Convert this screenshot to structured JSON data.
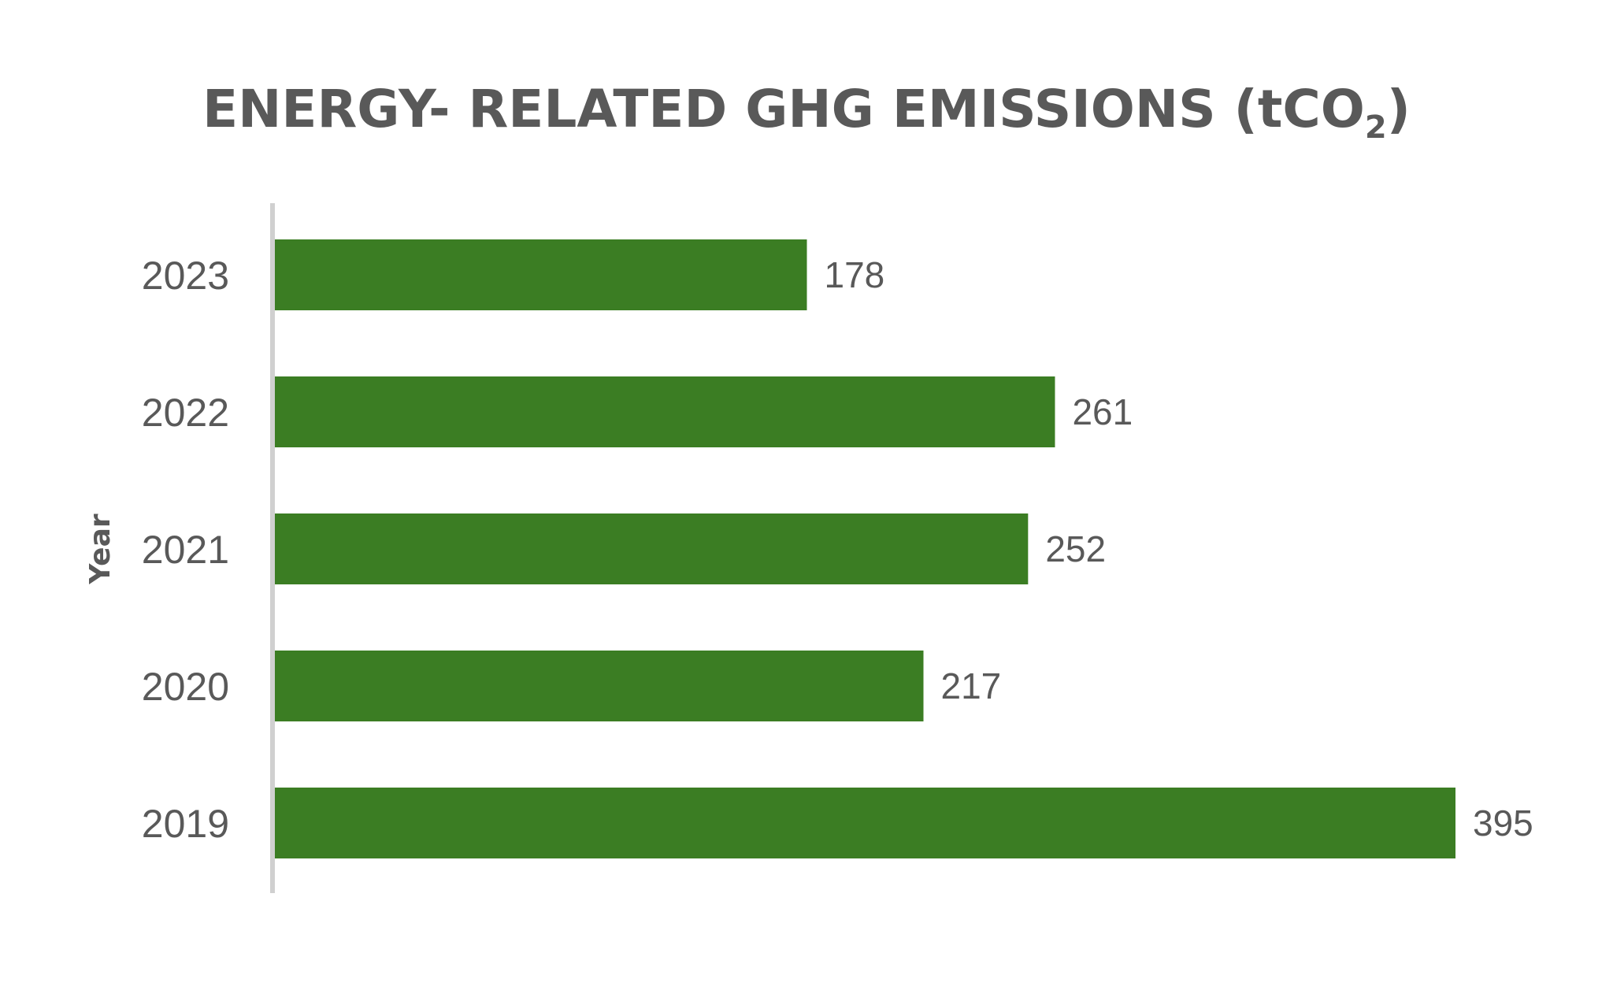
{
  "chart_data": {
    "type": "bar",
    "orientation": "horizontal",
    "title_main": "ENERGY- RELATED GHG EMISSIONS (tCO",
    "title_sub": "2",
    "title_end": ")",
    "ylabel": "Year",
    "xlabel": "",
    "categories": [
      "2023",
      "2022",
      "2021",
      "2020",
      "2019"
    ],
    "values": [
      178,
      261,
      252,
      217,
      395
    ],
    "xlim": [
      0,
      395
    ],
    "bar_color": "#3b7d23",
    "axis_color": "#d0d0d0",
    "text_color": "#595959",
    "grid": false,
    "legend": "none",
    "data_labels": true
  }
}
